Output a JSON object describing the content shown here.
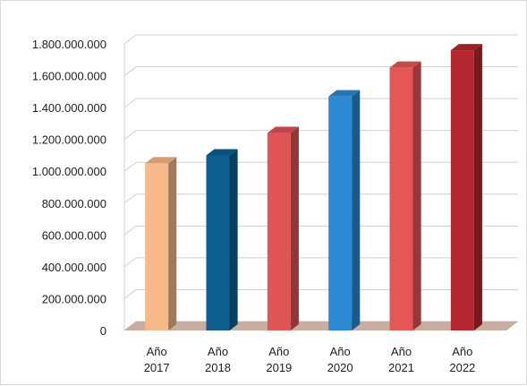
{
  "chart_data": {
    "type": "bar",
    "title": "",
    "xlabel": "",
    "ylabel": "",
    "categories": [
      [
        "Año",
        "2017"
      ],
      [
        "Año",
        "2018"
      ],
      [
        "Año",
        "2019"
      ],
      [
        "Año",
        "2020"
      ],
      [
        "Año",
        "2021"
      ],
      [
        "Año",
        "2022"
      ]
    ],
    "values": [
      1050000000,
      1100000000,
      1240000000,
      1470000000,
      1650000000,
      1760000000
    ],
    "ylim": [
      0,
      1800000000
    ],
    "y_ticks": [
      "0",
      "200.000.000",
      "400.000.000",
      "600.000.000",
      "800.000.000",
      "1.000.000.000",
      "1.200.000.000",
      "1.400.000.000",
      "1.600.000.000",
      "1.800.000.000"
    ],
    "style": "3d-column",
    "grid": true,
    "legend": "none",
    "colors": [
      "#f8b98a",
      "#0d5f91",
      "#e05555",
      "#2b8ad1",
      "#e65656",
      "#b5282f"
    ],
    "floor_color": "#c9ada0"
  }
}
